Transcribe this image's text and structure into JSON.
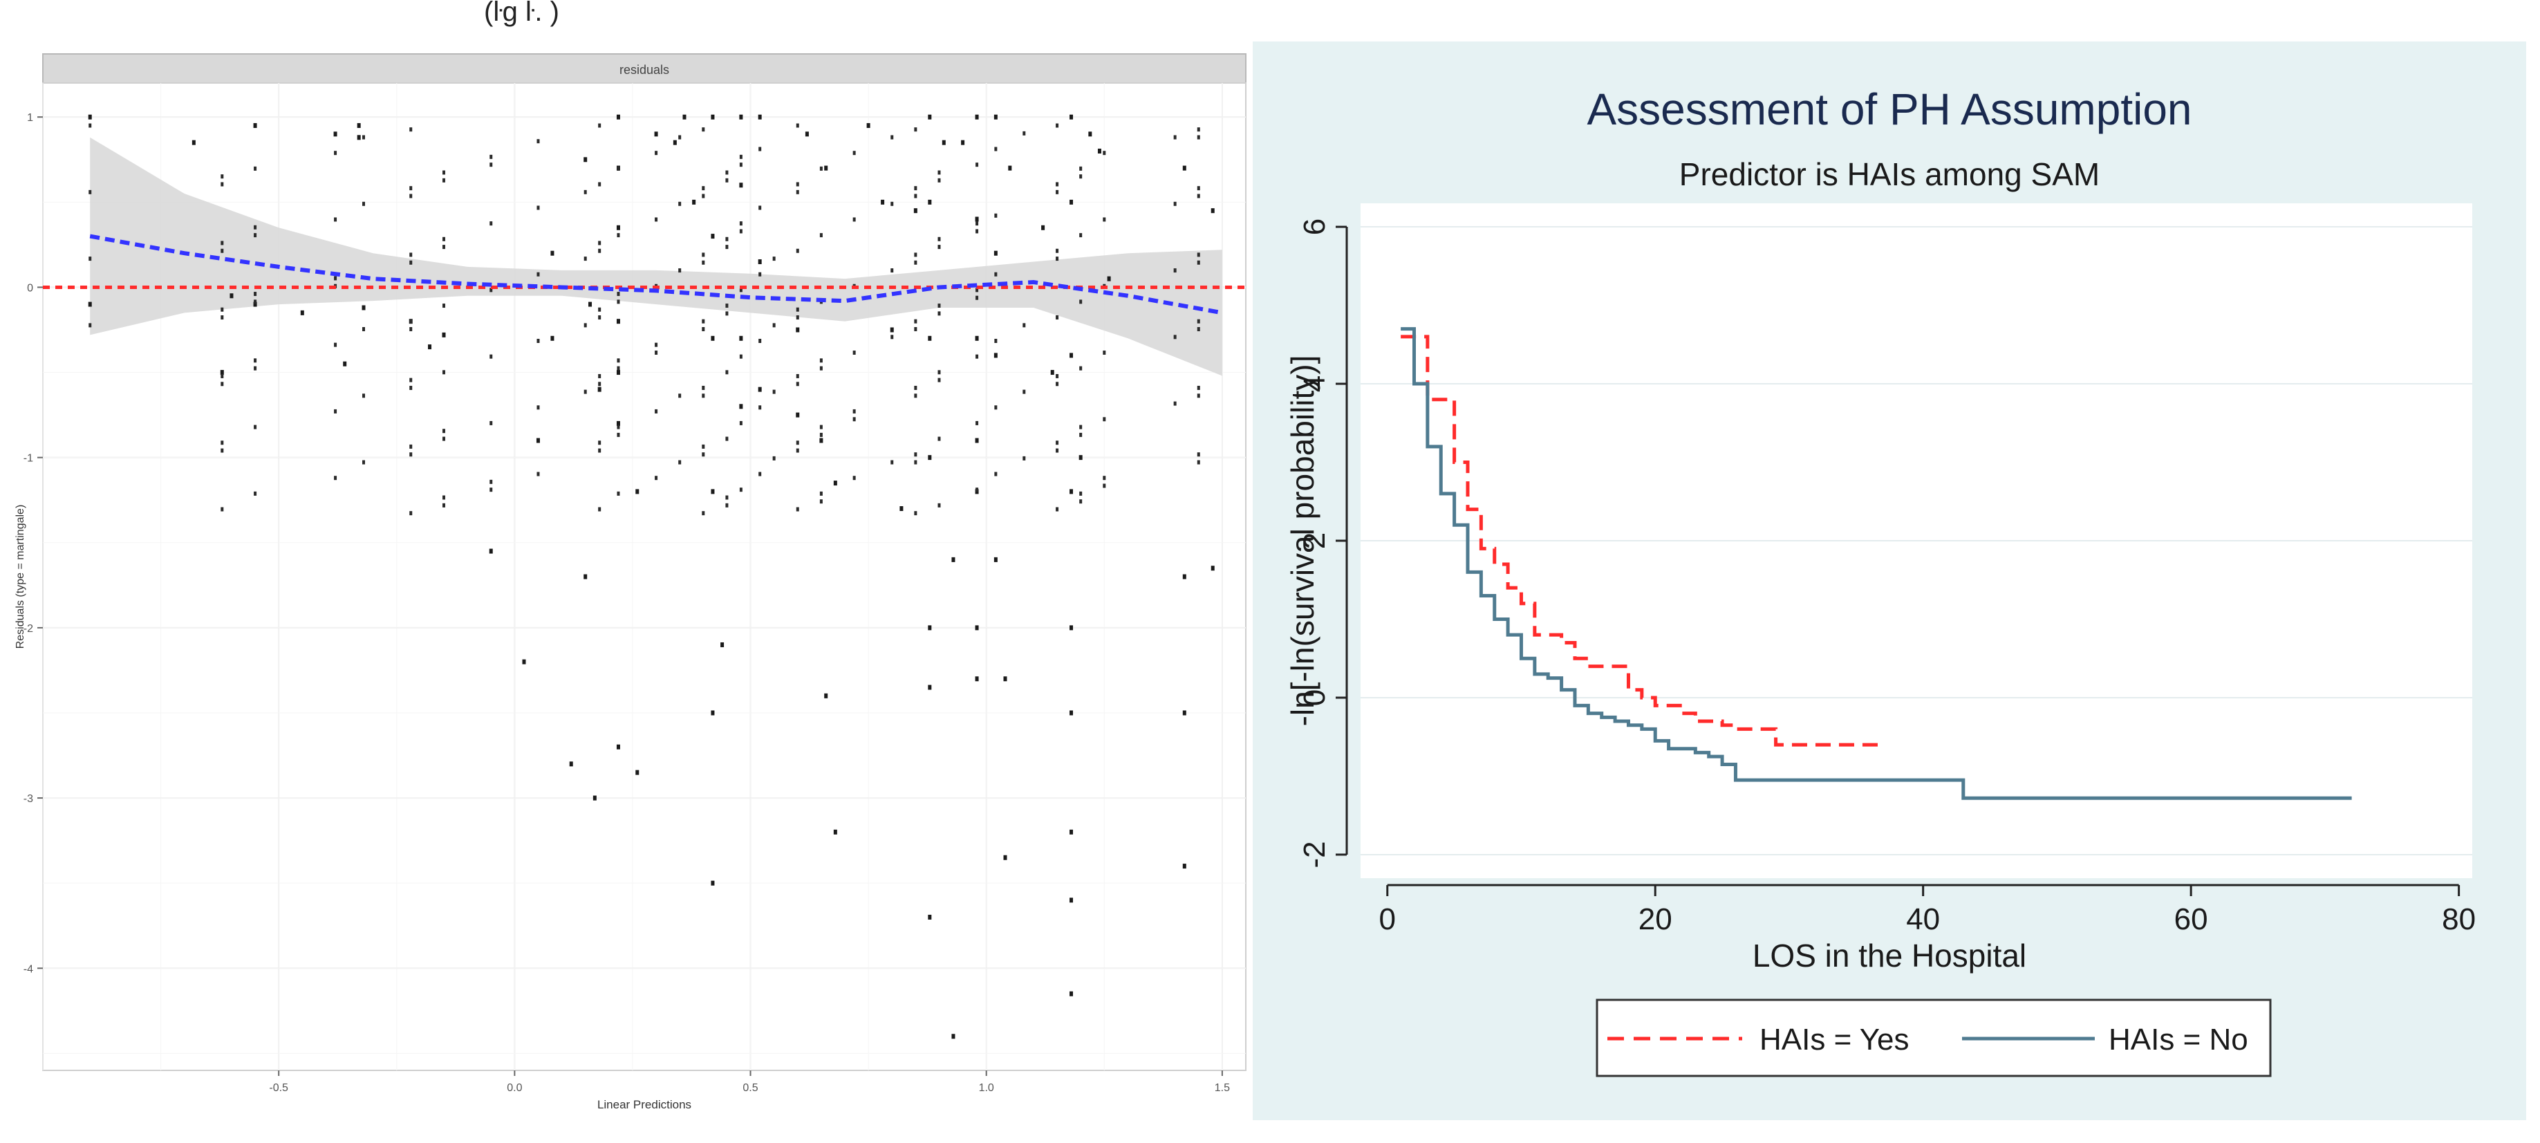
{
  "colors": {
    "left_fit": "#3333ff",
    "left_zero": "#ff2b2b",
    "band": "#d9d9d9",
    "right_panel_bg": "#e6f2f3",
    "title_color": "#1a2a4f",
    "series_yes": "#ff2b2b",
    "series_no": "#4f7b90"
  },
  "left": {
    "header_fragment": "(ŀg ŀ. )",
    "facet_label": "residuals",
    "ylabel": "Residuals (type = martingale)",
    "xlabel": "Linear Predictions"
  },
  "chart_data": [
    {
      "type": "scatter",
      "title": "",
      "facet": "residuals",
      "xlabel": "Linear Predictions",
      "ylabel": "Residuals (type = martingale)",
      "xlim": [
        -1.0,
        1.55
      ],
      "ylim": [
        -4.6,
        1.2
      ],
      "xticks": [
        -0.5,
        0.0,
        0.5,
        1.0,
        1.5
      ],
      "xtick_labels": [
        "-0.5",
        "0.0",
        "0.5",
        "1.0",
        "1.5"
      ],
      "yticks": [
        1,
        0,
        -1,
        -2,
        -3,
        -4
      ],
      "ytick_labels": [
        "1",
        "0",
        "-1",
        "-2",
        "-3",
        "-4"
      ],
      "reference_line": {
        "y": 0,
        "style": "dashed",
        "color": "red"
      },
      "x_groups": [
        -0.9,
        -0.62,
        -0.55,
        -0.38,
        -0.32,
        -0.22,
        -0.15,
        -0.05,
        0.05,
        0.15,
        0.18,
        0.22,
        0.3,
        0.35,
        0.4,
        0.45,
        0.48,
        0.52,
        0.55,
        0.6,
        0.65,
        0.72,
        0.8,
        0.85,
        0.9,
        0.98,
        1.02,
        1.08,
        1.15,
        1.2,
        1.25,
        1.4,
        1.45
      ],
      "points": [
        {
          "x": -0.9,
          "y": 1.0
        },
        {
          "x": -0.9,
          "y": -0.1
        },
        {
          "x": -0.68,
          "y": 0.85
        },
        {
          "x": -0.62,
          "y": -0.5
        },
        {
          "x": -0.6,
          "y": -0.05
        },
        {
          "x": -0.55,
          "y": 0.95
        },
        {
          "x": -0.55,
          "y": -0.1
        },
        {
          "x": -0.45,
          "y": -0.15
        },
        {
          "x": -0.38,
          "y": 0.9
        },
        {
          "x": -0.36,
          "y": -0.45
        },
        {
          "x": -0.33,
          "y": 0.95
        },
        {
          "x": -0.33,
          "y": 0.88
        },
        {
          "x": -0.32,
          "y": -0.12
        },
        {
          "x": -0.22,
          "y": -0.2
        },
        {
          "x": -0.18,
          "y": -0.35
        },
        {
          "x": -0.15,
          "y": -0.28
        },
        {
          "x": -0.05,
          "y": -1.55
        },
        {
          "x": 0.02,
          "y": -2.2
        },
        {
          "x": 0.05,
          "y": -0.9
        },
        {
          "x": 0.08,
          "y": 0.2
        },
        {
          "x": 0.08,
          "y": -0.3
        },
        {
          "x": 0.12,
          "y": -2.8
        },
        {
          "x": 0.15,
          "y": -1.7
        },
        {
          "x": 0.15,
          "y": 0.75
        },
        {
          "x": 0.17,
          "y": -3.0
        },
        {
          "x": 0.16,
          "y": -0.1
        },
        {
          "x": 0.18,
          "y": -0.6
        },
        {
          "x": 0.22,
          "y": 1.0
        },
        {
          "x": 0.22,
          "y": 0.7
        },
        {
          "x": 0.22,
          "y": 0.35
        },
        {
          "x": 0.22,
          "y": -0.2
        },
        {
          "x": 0.22,
          "y": -0.5
        },
        {
          "x": 0.22,
          "y": -0.8
        },
        {
          "x": 0.22,
          "y": -2.7
        },
        {
          "x": 0.26,
          "y": -1.2
        },
        {
          "x": 0.26,
          "y": -2.85
        },
        {
          "x": 0.3,
          "y": 0.9
        },
        {
          "x": 0.34,
          "y": 0.85
        },
        {
          "x": 0.36,
          "y": 1.0
        },
        {
          "x": 0.38,
          "y": 0.5
        },
        {
          "x": 0.42,
          "y": 1.0
        },
        {
          "x": 0.42,
          "y": 0.3
        },
        {
          "x": 0.42,
          "y": -0.3
        },
        {
          "x": 0.42,
          "y": -1.2
        },
        {
          "x": 0.42,
          "y": -2.5
        },
        {
          "x": 0.42,
          "y": -3.5
        },
        {
          "x": 0.44,
          "y": -2.1
        },
        {
          "x": 0.48,
          "y": 1.0
        },
        {
          "x": 0.48,
          "y": 0.6
        },
        {
          "x": 0.48,
          "y": -0.3
        },
        {
          "x": 0.48,
          "y": -0.7
        },
        {
          "x": 0.52,
          "y": 1.0
        },
        {
          "x": 0.52,
          "y": 0.15
        },
        {
          "x": 0.52,
          "y": -0.6
        },
        {
          "x": 0.6,
          "y": -0.25
        },
        {
          "x": 0.6,
          "y": -0.75
        },
        {
          "x": 0.62,
          "y": 0.9
        },
        {
          "x": 0.65,
          "y": -0.9
        },
        {
          "x": 0.66,
          "y": -2.4
        },
        {
          "x": 0.68,
          "y": -1.15
        },
        {
          "x": 0.66,
          "y": 0.7
        },
        {
          "x": 0.68,
          "y": -3.2
        },
        {
          "x": 0.75,
          "y": 0.95
        },
        {
          "x": 0.78,
          "y": 0.5
        },
        {
          "x": 0.8,
          "y": -0.25
        },
        {
          "x": 0.82,
          "y": -1.3
        },
        {
          "x": 0.85,
          "y": 0.45
        },
        {
          "x": 0.88,
          "y": 1.0
        },
        {
          "x": 0.88,
          "y": 0.5
        },
        {
          "x": 0.88,
          "y": -0.3
        },
        {
          "x": 0.88,
          "y": -1.0
        },
        {
          "x": 0.88,
          "y": -2.0
        },
        {
          "x": 0.88,
          "y": -2.35
        },
        {
          "x": 0.88,
          "y": -3.7
        },
        {
          "x": 0.91,
          "y": 0.85
        },
        {
          "x": 0.93,
          "y": -4.4
        },
        {
          "x": 0.93,
          "y": -1.6
        },
        {
          "x": 0.95,
          "y": 0.85
        },
        {
          "x": 0.98,
          "y": 1.0
        },
        {
          "x": 0.98,
          "y": 0.4
        },
        {
          "x": 0.98,
          "y": -0.3
        },
        {
          "x": 0.98,
          "y": -0.9
        },
        {
          "x": 0.98,
          "y": -1.2
        },
        {
          "x": 0.98,
          "y": -2.0
        },
        {
          "x": 0.98,
          "y": -2.3
        },
        {
          "x": 1.02,
          "y": 1.0
        },
        {
          "x": 1.02,
          "y": 0.2
        },
        {
          "x": 1.02,
          "y": -0.4
        },
        {
          "x": 1.02,
          "y": -1.6
        },
        {
          "x": 1.04,
          "y": -3.35
        },
        {
          "x": 1.04,
          "y": -2.3
        },
        {
          "x": 1.05,
          "y": 0.7
        },
        {
          "x": 1.12,
          "y": 0.35
        },
        {
          "x": 1.14,
          "y": -0.5
        },
        {
          "x": 1.18,
          "y": 1.0
        },
        {
          "x": 1.18,
          "y": 0.5
        },
        {
          "x": 1.18,
          "y": -0.4
        },
        {
          "x": 1.18,
          "y": -1.2
        },
        {
          "x": 1.18,
          "y": -2.0
        },
        {
          "x": 1.18,
          "y": -2.5
        },
        {
          "x": 1.18,
          "y": -3.2
        },
        {
          "x": 1.18,
          "y": -3.6
        },
        {
          "x": 1.18,
          "y": -4.15
        },
        {
          "x": 1.2,
          "y": -1.0
        },
        {
          "x": 1.22,
          "y": 0.9
        },
        {
          "x": 1.24,
          "y": 0.8
        },
        {
          "x": 1.26,
          "y": 0.05
        },
        {
          "x": 1.42,
          "y": 0.7
        },
        {
          "x": 1.42,
          "y": -1.7
        },
        {
          "x": 1.42,
          "y": -2.5
        },
        {
          "x": 1.42,
          "y": -3.4
        },
        {
          "x": 1.48,
          "y": 0.45
        },
        {
          "x": 1.48,
          "y": -1.65
        }
      ],
      "smooth_fit": {
        "color": "blue",
        "style": "dashed",
        "x": [
          -0.9,
          -0.7,
          -0.5,
          -0.3,
          -0.1,
          0.1,
          0.3,
          0.5,
          0.7,
          0.9,
          1.1,
          1.3,
          1.5
        ],
        "y": [
          0.3,
          0.2,
          0.12,
          0.05,
          0.02,
          0.0,
          -0.02,
          -0.06,
          -0.08,
          0.0,
          0.03,
          -0.05,
          -0.15
        ],
        "band_upper": [
          0.88,
          0.55,
          0.35,
          0.2,
          0.12,
          0.1,
          0.1,
          0.08,
          0.05,
          0.1,
          0.15,
          0.2,
          0.22
        ],
        "band_lower": [
          -0.28,
          -0.15,
          -0.1,
          -0.08,
          -0.05,
          -0.05,
          -0.1,
          -0.15,
          -0.2,
          -0.12,
          -0.12,
          -0.3,
          -0.52
        ]
      }
    },
    {
      "type": "line",
      "title": "Assessment of PH Assumption",
      "subtitle": "Predictor is HAIs among SAM",
      "xlabel": "LOS in the Hospital",
      "ylabel": "-ln[-ln(survival probability)]",
      "xlim": [
        -2,
        81
      ],
      "ylim": [
        -2.3,
        6.3
      ],
      "xticks": [
        0,
        20,
        40,
        60,
        80
      ],
      "xtick_labels": [
        "0",
        "20",
        "40",
        "60",
        "80"
      ],
      "yticks": [
        -2,
        0,
        2,
        4,
        6
      ],
      "ytick_labels": [
        "-2",
        "0",
        "2",
        "4",
        "6"
      ],
      "grid": true,
      "legend_position": "bottom",
      "series": [
        {
          "name": "HAIs = Yes",
          "color": "red",
          "style": "dashed",
          "x": [
            1,
            2,
            3,
            4,
            5,
            6,
            7,
            8,
            9,
            10,
            11,
            12,
            13,
            14,
            15,
            16,
            18,
            19,
            20,
            21,
            22,
            23,
            24,
            25,
            26,
            27,
            28,
            29,
            33,
            37
          ],
          "y": [
            4.6,
            4.6,
            3.8,
            3.8,
            3.0,
            2.4,
            1.9,
            1.7,
            1.4,
            1.2,
            0.8,
            0.8,
            0.7,
            0.5,
            0.4,
            0.4,
            0.1,
            0.0,
            -0.1,
            -0.1,
            -0.2,
            -0.3,
            -0.3,
            -0.35,
            -0.4,
            -0.4,
            -0.4,
            -0.6,
            -0.6,
            -0.6
          ]
        },
        {
          "name": "HAIs = No",
          "color": "steelblue",
          "style": "solid",
          "x": [
            1,
            2,
            3,
            4,
            5,
            6,
            7,
            8,
            9,
            10,
            11,
            12,
            13,
            14,
            15,
            16,
            17,
            18,
            19,
            20,
            21,
            22,
            23,
            24,
            25,
            26,
            28,
            34,
            43,
            72
          ],
          "y": [
            4.7,
            4.0,
            3.2,
            2.6,
            2.2,
            1.6,
            1.3,
            1.0,
            0.8,
            0.5,
            0.3,
            0.25,
            0.1,
            -0.1,
            -0.2,
            -0.25,
            -0.3,
            -0.35,
            -0.4,
            -0.55,
            -0.65,
            -0.65,
            -0.7,
            -0.75,
            -0.85,
            -1.05,
            -1.05,
            -1.05,
            -1.28,
            -1.28
          ]
        }
      ]
    }
  ]
}
